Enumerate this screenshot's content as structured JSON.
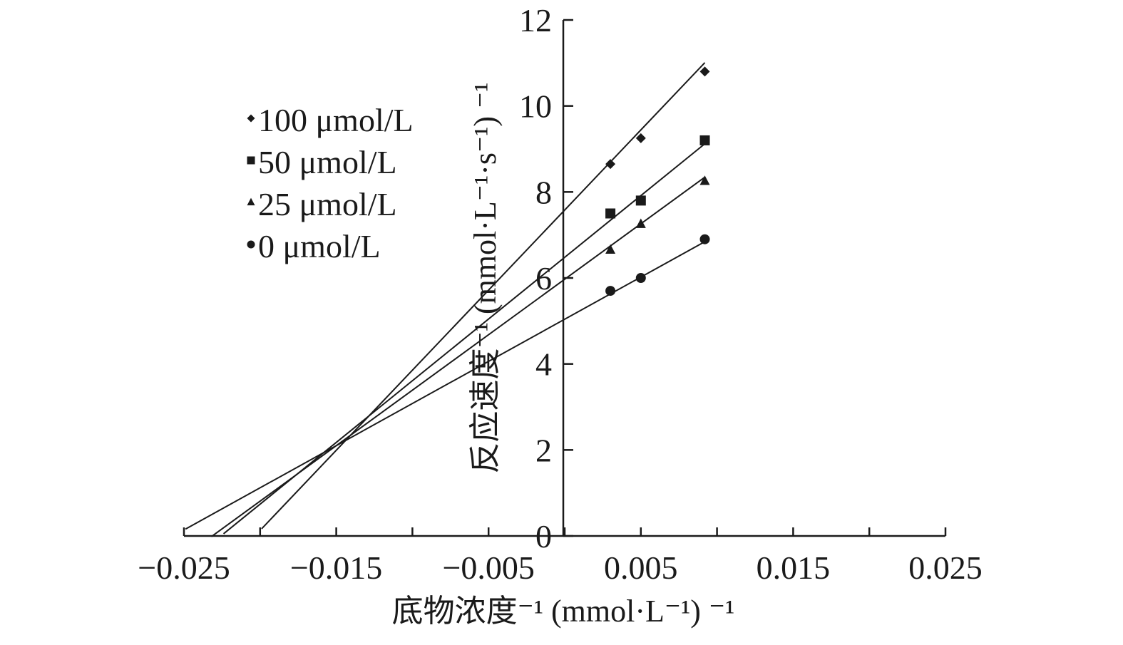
{
  "chart_data": {
    "type": "line",
    "title": "",
    "xlabel": "底物浓度⁻¹ (mmol·L⁻¹) ⁻¹",
    "ylabel": "反应速度⁻¹ (mmol·L⁻¹·s⁻¹) ⁻¹",
    "xlim": [
      -0.025,
      0.025
    ],
    "ylim": [
      0,
      12
    ],
    "x_ticks": [
      -0.025,
      -0.015,
      -0.005,
      0.005,
      0.015,
      0.025
    ],
    "x_tick_labels": [
      "−0.025",
      "−0.015",
      "−0.005",
      "0.005",
      "0.015",
      "0.025"
    ],
    "y_ticks": [
      0,
      2,
      4,
      6,
      8,
      10,
      12
    ],
    "y_tick_labels": [
      "0",
      "2",
      "4",
      "6",
      "8",
      "10",
      "12"
    ],
    "grid": false,
    "legend": "top-left",
    "series": [
      {
        "name": "100 μmol/L",
        "marker": "diamond",
        "x": [
          0.003,
          0.005,
          0.0092
        ],
        "y": [
          8.65,
          9.25,
          10.8
        ],
        "fit": {
          "slope": 372.5,
          "intercept": 7.58,
          "x_start": -0.0199,
          "x_end": 0.0092
        }
      },
      {
        "name": "50 μmol/L",
        "marker": "square",
        "x": [
          0.003,
          0.005,
          0.0092
        ],
        "y": [
          7.5,
          7.8,
          9.2
        ],
        "fit": {
          "slope": 287,
          "intercept": 6.48,
          "x_start": -0.0224,
          "x_end": 0.0092
        }
      },
      {
        "name": "25 μmol/L",
        "marker": "triangle",
        "x": [
          0.003,
          0.005,
          0.0092
        ],
        "y": [
          6.65,
          7.25,
          8.25
        ],
        "fit": {
          "slope": 258,
          "intercept": 5.97,
          "x_start": -0.0232,
          "x_end": 0.0092
        }
      },
      {
        "name": "0 μmol/L",
        "marker": "circle",
        "x": [
          0.003,
          0.005,
          0.0092
        ],
        "y": [
          5.7,
          6.0,
          6.9
        ],
        "fit": {
          "slope": 196,
          "intercept": 5.04,
          "x_start": -0.0249,
          "x_end": 0.0092
        }
      }
    ]
  },
  "colors": {
    "ink": "#1a1a1a",
    "background": "#ffffff"
  }
}
